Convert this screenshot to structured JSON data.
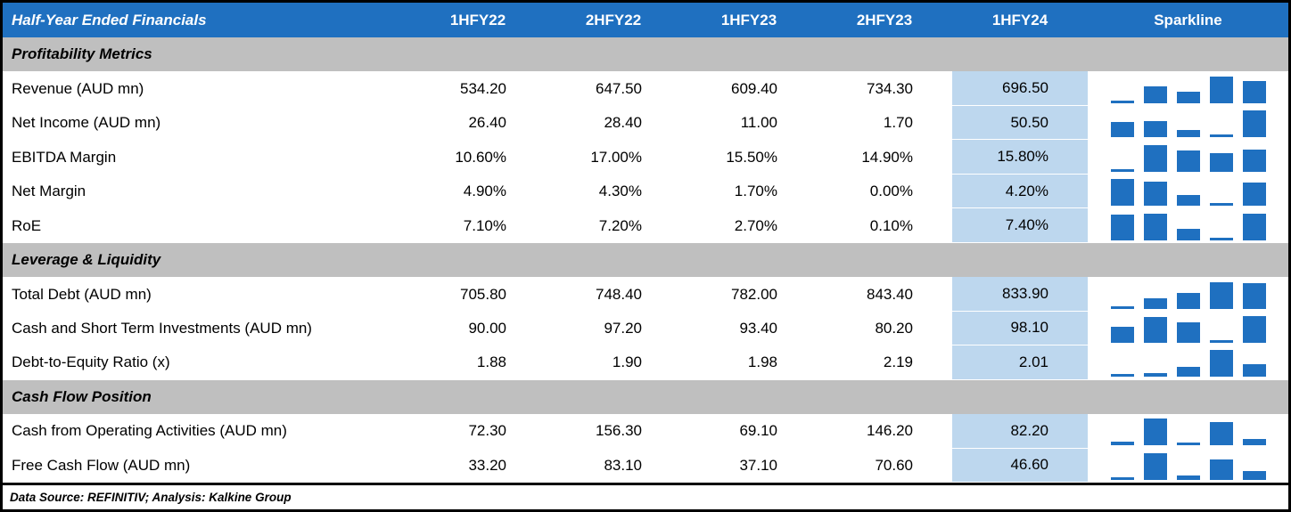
{
  "header": {
    "title": "Half-Year Ended Financials",
    "sparkline_label": "Sparkline"
  },
  "footer": {
    "text": "Data Source: REFINITIV; Analysis: Kalkine Group"
  },
  "colors": {
    "header_bg": "#1F70C0",
    "header_text": "#FFFFFF",
    "section_bg": "#BFBFBF",
    "highlight_bg": "#BDD7EE",
    "sparkline_bar": "#1F70C0",
    "border": "#000000"
  },
  "chart_data": {
    "type": "table",
    "title": "Half-Year Ended Financials",
    "columns": [
      "1HFY22",
      "2HFY22",
      "1HFY23",
      "2HFY23",
      "1HFY24"
    ],
    "highlighted_column": "1HFY24",
    "sparkline": {
      "type": "bar",
      "scaling": "row min-max",
      "position": "right column"
    },
    "sections": [
      {
        "title": "Profitability Metrics",
        "rows": [
          {
            "label": "Revenue (AUD mn)",
            "display": [
              "534.20",
              "647.50",
              "609.40",
              "734.30",
              "696.50"
            ],
            "values": [
              534.2,
              647.5,
              609.4,
              734.3,
              696.5
            ]
          },
          {
            "label": "Net Income (AUD mn)",
            "display": [
              "26.40",
              "28.40",
              "11.00",
              "1.70",
              "50.50"
            ],
            "values": [
              26.4,
              28.4,
              11.0,
              1.7,
              50.5
            ]
          },
          {
            "label": "EBITDA Margin",
            "display": [
              "10.60%",
              "17.00%",
              "15.50%",
              "14.90%",
              "15.80%"
            ],
            "values": [
              10.6,
              17.0,
              15.5,
              14.9,
              15.8
            ]
          },
          {
            "label": "Net Margin",
            "display": [
              "4.90%",
              "4.30%",
              "1.70%",
              "0.00%",
              "4.20%"
            ],
            "values": [
              4.9,
              4.3,
              1.7,
              0.0,
              4.2
            ]
          },
          {
            "label": "RoE",
            "display": [
              "7.10%",
              "7.20%",
              "2.70%",
              "0.10%",
              "7.40%"
            ],
            "values": [
              7.1,
              7.2,
              2.7,
              0.1,
              7.4
            ]
          }
        ]
      },
      {
        "title": "Leverage & Liquidity",
        "rows": [
          {
            "label": "Total Debt (AUD mn)",
            "display": [
              "705.80",
              "748.40",
              "782.00",
              "843.40",
              "833.90"
            ],
            "values": [
              705.8,
              748.4,
              782.0,
              843.4,
              833.9
            ]
          },
          {
            "label": "Cash and Short Term Investments (AUD mn)",
            "display": [
              "90.00",
              "97.20",
              "93.40",
              "80.20",
              "98.10"
            ],
            "values": [
              90.0,
              97.2,
              93.4,
              80.2,
              98.1
            ]
          },
          {
            "label": "Debt-to-Equity Ratio (x)",
            "display": [
              "1.88",
              "1.90",
              "1.98",
              "2.19",
              "2.01"
            ],
            "values": [
              1.88,
              1.9,
              1.98,
              2.19,
              2.01
            ]
          }
        ]
      },
      {
        "title": "Cash Flow Position",
        "rows": [
          {
            "label": "Cash from Operating Activities (AUD mn)",
            "display": [
              "72.30",
              "156.30",
              "69.10",
              "146.20",
              "82.20"
            ],
            "values": [
              72.3,
              156.3,
              69.1,
              146.2,
              82.2
            ]
          },
          {
            "label": "Free Cash Flow (AUD mn)",
            "display": [
              "33.20",
              "83.10",
              "37.10",
              "70.60",
              "46.60"
            ],
            "values": [
              33.2,
              83.1,
              37.1,
              70.6,
              46.6
            ]
          }
        ]
      }
    ]
  }
}
